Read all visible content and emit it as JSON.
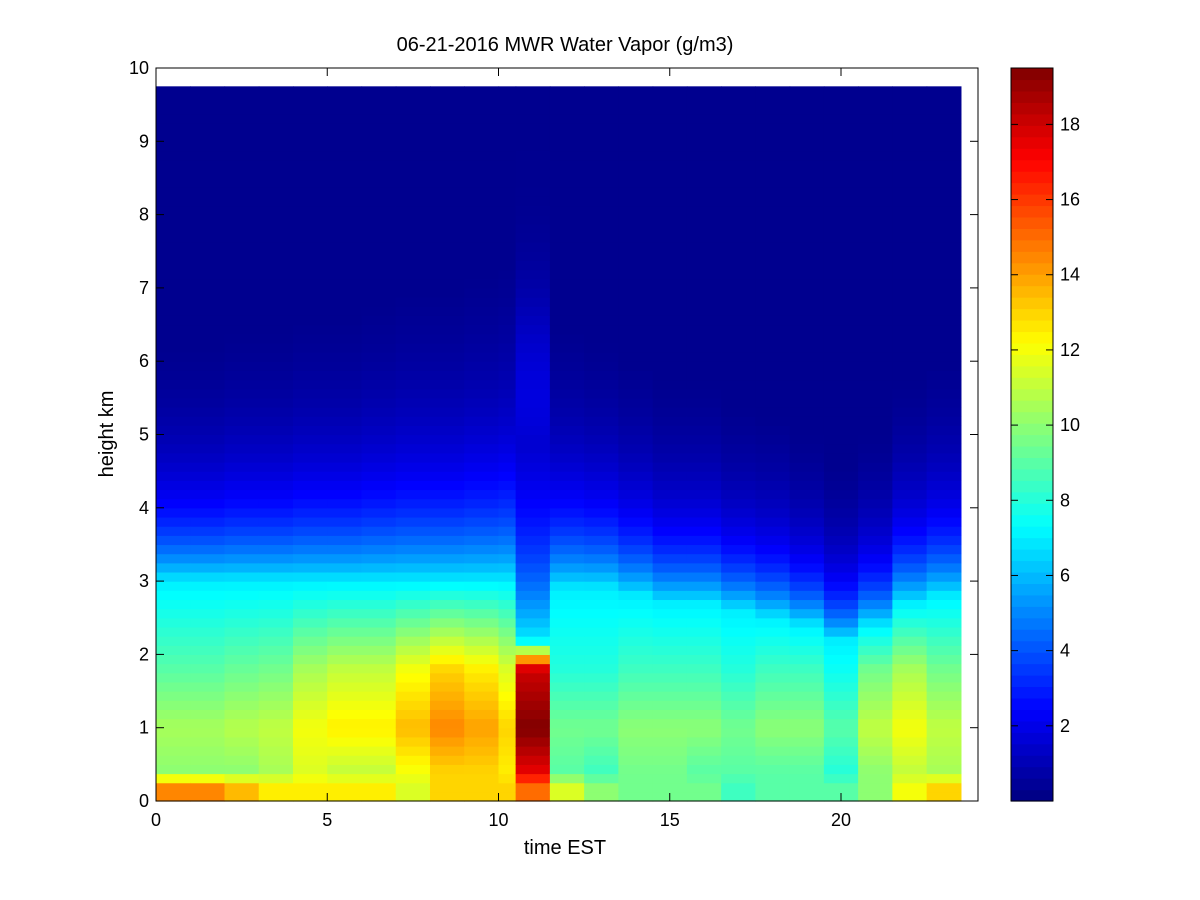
{
  "chart_data": {
    "type": "heatmap",
    "title": "06-21-2016 MWR Water Vapor (g/m3)",
    "xlabel": "time EST",
    "ylabel": "height km",
    "xlim": [
      0,
      24
    ],
    "ylim": [
      0,
      10
    ],
    "x_ticks": [
      0,
      5,
      10,
      15,
      20
    ],
    "y_ticks": [
      0,
      1,
      2,
      3,
      4,
      5,
      6,
      7,
      8,
      9,
      10
    ],
    "colorbar": {
      "colormap": "jet",
      "range": [
        0,
        19.5
      ],
      "ticks": [
        2,
        4,
        6,
        8,
        10,
        12,
        14,
        16,
        18
      ]
    },
    "data_extent": {
      "x": [
        0,
        23.5
      ],
      "y": [
        0,
        9.75
      ]
    },
    "x_bin_edges": [
      0,
      1,
      2,
      3,
      4,
      5,
      6,
      7,
      8,
      9,
      10,
      10.5,
      11.5,
      12.5,
      13.5,
      14.5,
      15.5,
      16.5,
      17.5,
      18.5,
      19.5,
      20.5,
      21.5,
      22.5,
      23.5
    ],
    "columns": [
      {
        "t": 0.5,
        "sfc": 14.5,
        "low": 10.0,
        "peak": 10.5,
        "zt": 3.0,
        "hv": 4.2,
        "s": 0.8,
        "g": 0
      },
      {
        "t": 1.5,
        "sfc": 14.5,
        "low": 10.0,
        "peak": 10.5,
        "zt": 3.0,
        "hv": 4.3,
        "s": 0.8,
        "g": 0
      },
      {
        "t": 2.5,
        "sfc": 13.5,
        "low": 10.0,
        "peak": 10.8,
        "zt": 3.0,
        "hv": 4.5,
        "s": 0.85,
        "g": 0
      },
      {
        "t": 3.5,
        "sfc": 12.5,
        "low": 10.5,
        "peak": 11.0,
        "zt": 3.0,
        "hv": 4.7,
        "s": 0.85,
        "g": 0
      },
      {
        "t": 4.5,
        "sfc": 12.5,
        "low": 11.5,
        "peak": 12.0,
        "zt": 3.0,
        "hv": 4.9,
        "s": 0.9,
        "g": 0
      },
      {
        "t": 5.5,
        "sfc": 12.5,
        "low": 11.0,
        "peak": 12.5,
        "zt": 3.0,
        "hv": 5.1,
        "s": 0.9,
        "g": 0
      },
      {
        "t": 6.5,
        "sfc": 12.5,
        "low": 11.0,
        "peak": 12.5,
        "zt": 3.0,
        "hv": 5.3,
        "s": 0.95,
        "g": 0
      },
      {
        "t": 7.5,
        "sfc": 11.5,
        "low": 12.0,
        "peak": 13.5,
        "zt": 3.0,
        "hv": 5.5,
        "s": 1.0,
        "g": 0
      },
      {
        "t": 8.5,
        "sfc": 13.0,
        "low": 13.0,
        "peak": 14.5,
        "zt": 3.0,
        "hv": 5.7,
        "s": 1.0,
        "g": 0
      },
      {
        "t": 9.5,
        "sfc": 13.0,
        "low": 13.0,
        "peak": 14.0,
        "zt": 3.0,
        "hv": 5.9,
        "s": 1.05,
        "g": 0
      },
      {
        "t": 10.25,
        "sfc": 13.0,
        "low": 12.5,
        "peak": 13.0,
        "zt": 3.0,
        "hv": 6.1,
        "s": 1.1,
        "g": 0
      },
      {
        "t": 11.0,
        "sfc": 15.0,
        "low": 17.5,
        "peak": 19.5,
        "zt": 2.2,
        "hv": 7.0,
        "s": 1.4,
        "g": 1.5
      },
      {
        "t": 12.0,
        "sfc": 11.5,
        "low": 9.0,
        "peak": 9.5,
        "zt": 2.9,
        "hv": 5.0,
        "s": 0.9,
        "g": 0
      },
      {
        "t": 13.0,
        "sfc": 10.0,
        "low": 8.5,
        "peak": 9.5,
        "zt": 2.9,
        "hv": 4.6,
        "s": 0.85,
        "g": 0
      },
      {
        "t": 14.0,
        "sfc": 9.5,
        "low": 9.5,
        "peak": 10.0,
        "zt": 2.8,
        "hv": 4.3,
        "s": 0.8,
        "g": 0
      },
      {
        "t": 15.0,
        "sfc": 9.5,
        "low": 9.5,
        "peak": 10.0,
        "zt": 2.7,
        "hv": 4.0,
        "s": 0.75,
        "g": 0
      },
      {
        "t": 16.0,
        "sfc": 9.5,
        "low": 9.0,
        "peak": 10.0,
        "zt": 2.7,
        "hv": 3.9,
        "s": 0.75,
        "g": 0
      },
      {
        "t": 17.0,
        "sfc": 8.5,
        "low": 9.0,
        "peak": 9.5,
        "zt": 2.6,
        "hv": 3.8,
        "s": 0.7,
        "g": 0
      },
      {
        "t": 18.0,
        "sfc": 9.0,
        "low": 9.0,
        "peak": 10.0,
        "zt": 2.5,
        "hv": 3.7,
        "s": 0.7,
        "g": 0
      },
      {
        "t": 19.0,
        "sfc": 9.0,
        "low": 9.0,
        "peak": 10.0,
        "zt": 2.4,
        "hv": 3.5,
        "s": 0.65,
        "g": 0
      },
      {
        "t": 20.0,
        "sfc": 9.0,
        "low": 8.0,
        "peak": 9.0,
        "zt": 2.2,
        "hv": 3.2,
        "s": 0.6,
        "g": 0
      },
      {
        "t": 21.0,
        "sfc": 10.0,
        "low": 10.0,
        "peak": 11.0,
        "zt": 2.4,
        "hv": 3.4,
        "s": 0.65,
        "g": 0
      },
      {
        "t": 22.0,
        "sfc": 12.0,
        "low": 11.0,
        "peak": 12.0,
        "zt": 2.7,
        "hv": 3.9,
        "s": 0.75,
        "g": 0
      },
      {
        "t": 23.0,
        "sfc": 13.0,
        "low": 10.5,
        "peak": 11.0,
        "zt": 2.8,
        "hv": 4.1,
        "s": 0.8,
        "g": 0
      }
    ]
  }
}
